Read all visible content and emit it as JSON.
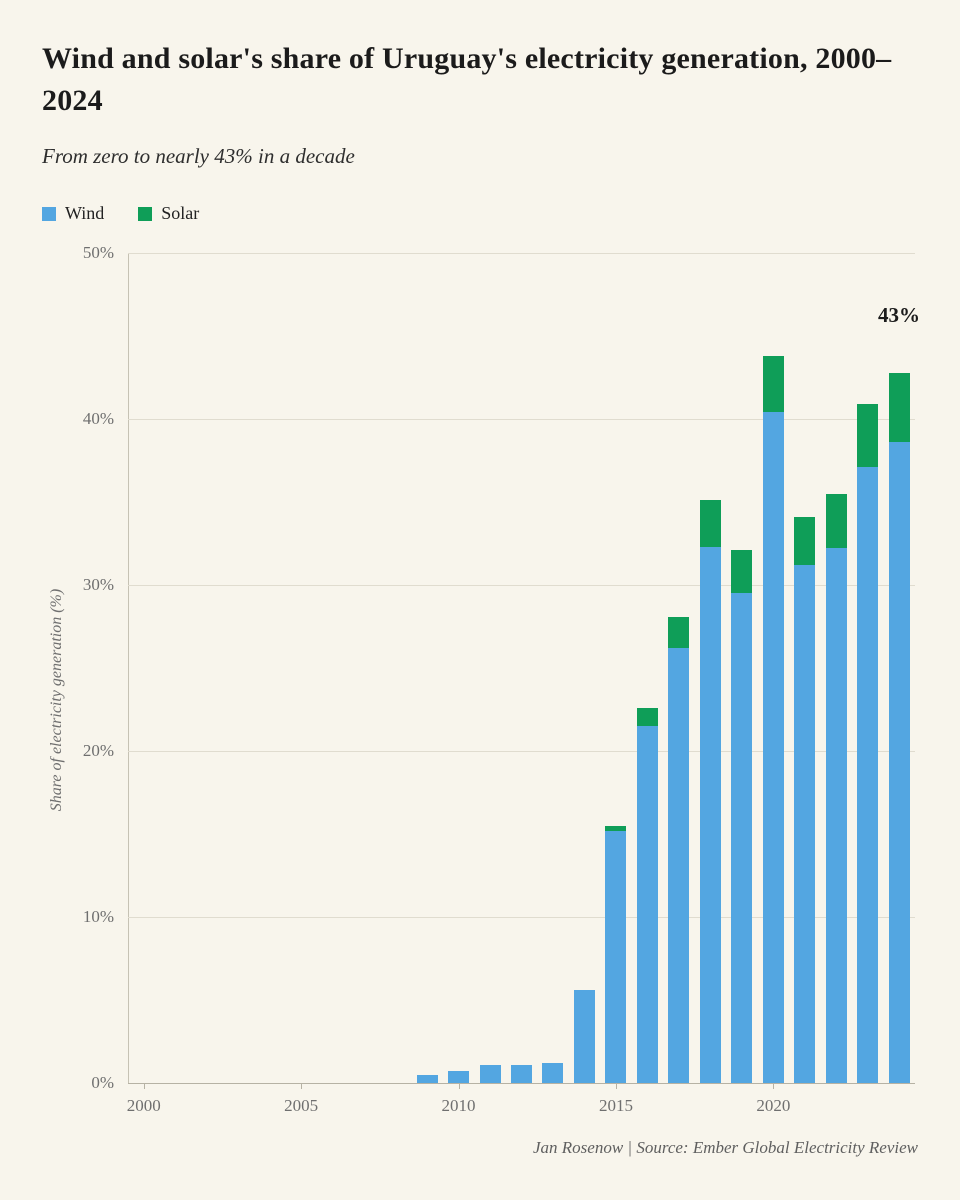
{
  "header": {
    "title": "Wind and solar's share of Uruguay's electricity generation, 2000–2024",
    "subtitle": "From zero to nearly 43% in a decade"
  },
  "legend": {
    "items": [
      {
        "label": "Wind",
        "color": "#53a6e1"
      },
      {
        "label": "Solar",
        "color": "#0f9e58"
      }
    ]
  },
  "annotation": {
    "label": "43%"
  },
  "footer": {
    "credit": "Jan Rosenow  |  Source: Ember Global Electricity Review"
  },
  "chart_data": {
    "type": "bar",
    "stacked": true,
    "title": "Wind and solar's share of Uruguay's electricity generation, 2000–2024",
    "subtitle": "From zero to nearly 43% in a decade",
    "xlabel": "",
    "ylabel": "Share of electricity generation (%)",
    "ylim": [
      0,
      50
    ],
    "yticks": [
      0,
      10,
      20,
      30,
      40,
      50
    ],
    "ytick_suffix": "%",
    "xticks": [
      2000,
      2005,
      2010,
      2015,
      2020
    ],
    "grid": true,
    "legend_position": "top-left",
    "x": [
      2000,
      2001,
      2002,
      2003,
      2004,
      2005,
      2006,
      2007,
      2008,
      2009,
      2010,
      2011,
      2012,
      2013,
      2014,
      2015,
      2016,
      2017,
      2018,
      2019,
      2020,
      2021,
      2022,
      2023,
      2024
    ],
    "series": [
      {
        "name": "Wind",
        "color": "#53a6e1",
        "values": [
          0,
          0,
          0,
          0,
          0,
          0,
          0,
          0,
          0,
          0.5,
          0.7,
          1.1,
          1.1,
          1.2,
          5.6,
          15.2,
          21.5,
          26.2,
          32.3,
          29.5,
          40.4,
          31.2,
          32.2,
          37.1,
          38.6
        ]
      },
      {
        "name": "Solar",
        "color": "#0f9e58",
        "values": [
          0,
          0,
          0,
          0,
          0,
          0,
          0,
          0,
          0,
          0,
          0,
          0,
          0,
          0,
          0,
          0.3,
          1.1,
          1.9,
          2.8,
          2.6,
          3.4,
          2.9,
          3.3,
          3.8,
          4.2
        ]
      }
    ],
    "annotations": [
      {
        "text": "43%",
        "x": 2024,
        "y": 46.5
      }
    ]
  }
}
